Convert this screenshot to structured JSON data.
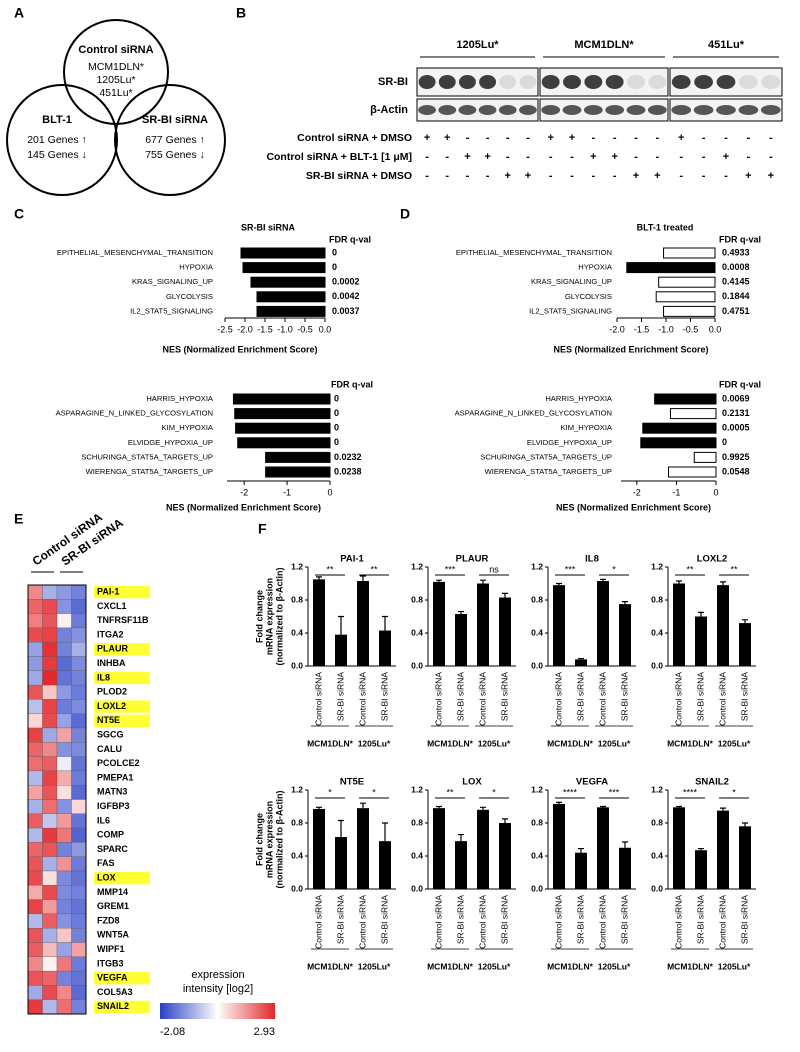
{
  "panel_labels": [
    "A",
    "B",
    "C",
    "D",
    "E",
    "F"
  ],
  "venn": {
    "sets": [
      {
        "label": "Control siRNA",
        "lines": [
          "MCM1DLN*",
          "1205Lu*",
          "451Lu*"
        ]
      },
      {
        "label": "BLT-1",
        "lines": [
          "201 Genes ↑",
          "145 Genes ↓"
        ]
      },
      {
        "label": "SR-BI siRNA",
        "lines": [
          "677 Genes ↑",
          "755 Genes ↓"
        ]
      }
    ]
  },
  "western_blot": {
    "cell_lines": [
      "1205Lu*",
      "MCM1DLN*",
      "451Lu*"
    ],
    "blot_rows": [
      "SR-BI",
      "β-Actin"
    ],
    "conditions": [
      {
        "label": "Control siRNA + DMSO",
        "marks": [
          [
            "+",
            "+",
            "-",
            "-",
            "-",
            "-"
          ],
          [
            "+",
            "+",
            "-",
            "-",
            "-",
            "-"
          ],
          [
            "+",
            "-",
            "-",
            "-",
            "-"
          ]
        ]
      },
      {
        "label": "Control siRNA + BLT-1 [1 μM]",
        "marks": [
          [
            "-",
            "-",
            "+",
            "+",
            "-",
            "-"
          ],
          [
            "-",
            "-",
            "+",
            "+",
            "-",
            "-"
          ],
          [
            "-",
            "-",
            "+",
            "-",
            "-"
          ]
        ]
      },
      {
        "label": "SR-BI siRNA + DMSO",
        "marks": [
          [
            "-",
            "-",
            "-",
            "-",
            "+",
            "+"
          ],
          [
            "-",
            "-",
            "-",
            "-",
            "+",
            "+"
          ],
          [
            "-",
            "-",
            "-",
            "+",
            "+"
          ]
        ]
      }
    ]
  },
  "chart_data": [
    {
      "type": "hbar",
      "title": "SR-BI siRNA",
      "categories": [
        "EPITHELIAL_MESENCHYMAL_TRANSITION",
        "HYPOXIA",
        "KRAS_SIGNALING_UP",
        "GLYCOLYSIS",
        "IL2_STAT5_SIGNALING"
      ],
      "values": [
        -2.1,
        -2.05,
        -1.85,
        -1.7,
        -1.7
      ],
      "color": "#000000",
      "fdr_header": "FDR q-val",
      "fdr": [
        0,
        0,
        0.0002,
        0.0042,
        0.0037
      ],
      "xlabel": "NES (Normalized Enrichment Score)",
      "xlim": [
        -2.5,
        0
      ],
      "xticks": [
        -2.5,
        {
          "value": -2,
          "label": "-2.0"
        },
        -1.5,
        {
          "value": -1,
          "label": "-1.0"
        },
        -0.5,
        {
          "value": 0,
          "label": "0.0"
        }
      ]
    },
    {
      "type": "hbar",
      "categories": [
        "HARRIS_HYPOXIA",
        "ASPARAGINE_N_LINKED_GLYCOSYLATION",
        "KIM_HYPOXIA",
        "ELVIDGE_HYPOXIA_UP",
        "SCHURINGA_STAT5A_TARGETS_UP",
        "WIERENGA_STAT5A_TARGETS_UP"
      ],
      "values": [
        -2.25,
        -2.22,
        -2.2,
        -2.15,
        -1.5,
        -1.5
      ],
      "color": "#000000",
      "fdr_header": "FDR q-val",
      "fdr": [
        0,
        0,
        0,
        0,
        0.0232,
        0.0238
      ],
      "xlabel": "NES (Normalized Enrichment Score)",
      "xlim": [
        -2.4,
        0
      ],
      "xticks": [
        -2,
        -1,
        0
      ]
    },
    {
      "type": "hbar",
      "title": "BLT-1 treated",
      "categories": [
        "EPITHELIAL_MESENCHYMAL_TRANSITION",
        "HYPOXIA",
        "KRAS_SIGNALING_UP",
        "GLYCOLYSIS",
        "IL2_STAT5_SIGNALING"
      ],
      "values": [
        -1.05,
        -1.8,
        -1.15,
        -1.2,
        -1.05
      ],
      "colors": [
        "#ffffff",
        "#000000",
        "#ffffff",
        "#ffffff",
        "#ffffff"
      ],
      "fdr_header": "FDR q-val",
      "fdr": [
        0.4933,
        0.0008,
        0.4145,
        0.1844,
        0.4751
      ],
      "xlabel": "NES (Normalized Enrichment Score)",
      "xlim": [
        -2,
        0
      ],
      "xticks": [
        {
          "value": -2,
          "label": "-2.0"
        },
        -1.5,
        {
          "value": -1,
          "label": "-1.0"
        },
        -0.5,
        {
          "value": 0,
          "label": "0.0"
        }
      ]
    },
    {
      "type": "hbar",
      "categories": [
        "HARRIS_HYPOXIA",
        "ASPARAGINE_N_LINKED_GLYCOSYLATION",
        "KIM_HYPOXIA",
        "ELVIDGE_HYPOXIA_UP",
        "SCHURINGA_STAT5A_TARGETS_UP",
        "WIERENGA_STAT5A_TARGETS_UP"
      ],
      "values": [
        -1.55,
        -1.15,
        -1.85,
        -1.9,
        -0.55,
        -1.2
      ],
      "colors": [
        "#000000",
        "#ffffff",
        "#000000",
        "#000000",
        "#ffffff",
        "#ffffff"
      ],
      "fdr_header": "FDR q-val",
      "fdr": [
        0.0069,
        0.2131,
        0.0005,
        0,
        0.9925,
        0.0548
      ],
      "xlabel": "NES (Normalized Enrichment Score)",
      "xlim": [
        -2.4,
        0
      ],
      "xticks": [
        -2,
        -1,
        0
      ]
    },
    {
      "type": "heatmap",
      "columns": [
        "Control siRNA",
        "SR-BI siRNA"
      ],
      "rows": [
        "PAI-1",
        "CXCL1",
        "TNFRSF11B",
        "ITGA2",
        "PLAUR",
        "INHBA",
        "IL8",
        "PLOD2",
        "LOXL2",
        "NT5E",
        "SGCG",
        "CALU",
        "PCOLCE2",
        "PMEPA1",
        "MATN3",
        "IGFBP3",
        "IL6",
        "COMP",
        "SPARC",
        "FAS",
        "LOX",
        "MMP14",
        "GREM1",
        "FZD8",
        "WNT5A",
        "WIPF1",
        "ITGB3",
        "VEGFA",
        "COL5A3",
        "SNAIL2"
      ],
      "highlight": [
        true,
        false,
        false,
        false,
        true,
        false,
        true,
        false,
        true,
        true,
        false,
        false,
        false,
        false,
        false,
        false,
        false,
        false,
        false,
        false,
        true,
        false,
        false,
        false,
        false,
        false,
        false,
        true,
        false,
        true
      ],
      "highlight_color": "#ffff33",
      "values": [
        [
          1.8,
          -0.6,
          -0.9,
          -1.2
        ],
        [
          2.2,
          2.5,
          -1.0,
          -1.5
        ],
        [
          1.9,
          2.4,
          0.6,
          -1.3
        ],
        [
          2.5,
          2.6,
          -1.2,
          -1.0
        ],
        [
          -0.8,
          2.8,
          -1.2,
          -0.6
        ],
        [
          -0.9,
          2.7,
          -1.5,
          -1.1
        ],
        [
          -0.7,
          2.9,
          -1.4,
          -1.2
        ],
        [
          2.4,
          1.1,
          -0.9,
          -1.3
        ],
        [
          -0.4,
          2.6,
          -1.3,
          -1.1
        ],
        [
          0.9,
          2.5,
          -0.8,
          -1.5
        ],
        [
          2.6,
          -0.7,
          1.5,
          -1.2
        ],
        [
          2.2,
          1.8,
          -1.0,
          -1.1
        ],
        [
          2.1,
          2.3,
          0.2,
          -1.4
        ],
        [
          -0.5,
          2.6,
          1.4,
          -1.3
        ],
        [
          1.5,
          2.4,
          0.8,
          -1.5
        ],
        [
          -0.6,
          2.1,
          -1.0,
          0.9
        ],
        [
          2.3,
          -0.3,
          1.6,
          -1.4
        ],
        [
          -0.5,
          2.7,
          2.0,
          -1.6
        ],
        [
          2.2,
          2.4,
          -1.2,
          -0.9
        ],
        [
          2.4,
          -0.6,
          1.7,
          -1.3
        ],
        [
          2.5,
          0.8,
          -1.1,
          -1.4
        ],
        [
          1.4,
          2.5,
          -1.1,
          -1.2
        ],
        [
          2.6,
          1.6,
          -1.2,
          -1.4
        ],
        [
          -0.5,
          2.3,
          -1.0,
          -1.3
        ],
        [
          2.4,
          -0.6,
          1.1,
          -1.2
        ],
        [
          2.3,
          1.2,
          -0.8,
          1.5
        ],
        [
          1.8,
          0.6,
          2.0,
          -1.3
        ],
        [
          2.4,
          2.2,
          -1.2,
          -1.4
        ],
        [
          -0.7,
          2.5,
          1.8,
          -1.5
        ],
        [
          2.7,
          -0.5,
          2.1,
          -1.2
        ]
      ],
      "colorbar": {
        "title": [
          "expression",
          "intensity [log2]"
        ],
        "min": -2.08,
        "max": 2.93,
        "colors": [
          "#2b3fc6",
          "#ffffff",
          "#e3262b"
        ]
      }
    },
    {
      "type": "bar",
      "title": "PAI-1",
      "ylabel": [
        "Fold change",
        "mRNA expression",
        "(normalized to β-Actin)"
      ],
      "categories": [
        "Control siRNA",
        "SR-BI siRNA",
        "Control siRNA",
        "SR-BI siRNA"
      ],
      "groups": [
        "MCM1DLN*",
        "1205Lu*"
      ],
      "values": [
        1.05,
        0.38,
        1.03,
        0.43
      ],
      "errors": [
        0.03,
        0.22,
        0.06,
        0.17
      ],
      "significance": [
        "**",
        "**"
      ],
      "color": "#000000",
      "ylim": [
        0,
        1.2
      ],
      "yticks": [
        {
          "value": 0,
          "label": "0.0"
        },
        0.4,
        0.8,
        1.2
      ]
    },
    {
      "type": "bar",
      "title": "PLAUR",
      "categories": [
        "Control siRNA",
        "SR-BI siRNA",
        "Control siRNA",
        "SR-BI siRNA"
      ],
      "groups": [
        "MCM1DLN*",
        "1205Lu*"
      ],
      "values": [
        1.02,
        0.63,
        1.0,
        0.83
      ],
      "errors": [
        0.02,
        0.03,
        0.04,
        0.05
      ],
      "significance": [
        "***",
        "ns"
      ],
      "color": "#000000",
      "ylim": [
        0,
        1.2
      ],
      "yticks": [
        {
          "value": 0,
          "label": "0.0"
        },
        0.4,
        0.8,
        1.2
      ]
    },
    {
      "type": "bar",
      "title": "IL8",
      "categories": [
        "Control siRNA",
        "SR-BI siRNA",
        "Control siRNA",
        "SR-BI siRNA"
      ],
      "groups": [
        "MCM1DLN*",
        "1205Lu*"
      ],
      "values": [
        0.98,
        0.08,
        1.03,
        0.75
      ],
      "errors": [
        0.02,
        0.01,
        0.02,
        0.03
      ],
      "significance": [
        "***",
        "*"
      ],
      "color": "#000000",
      "ylim": [
        0,
        1.2
      ],
      "yticks": [
        {
          "value": 0,
          "label": "0.0"
        },
        0.4,
        0.8,
        1.2
      ]
    },
    {
      "type": "bar",
      "title": "LOXL2",
      "categories": [
        "Control siRNA",
        "SR-BI siRNA",
        "Control siRNA",
        "SR-BI siRNA"
      ],
      "groups": [
        "MCM1DLN*",
        "1205Lu*"
      ],
      "values": [
        1.0,
        0.6,
        0.98,
        0.52
      ],
      "errors": [
        0.03,
        0.05,
        0.04,
        0.04
      ],
      "significance": [
        "**",
        "**"
      ],
      "color": "#000000",
      "ylim": [
        0,
        1.2
      ],
      "yticks": [
        {
          "value": 0,
          "label": "0.0"
        },
        0.4,
        0.8,
        1.2
      ]
    },
    {
      "type": "bar",
      "title": "NT5E",
      "ylabel": [
        "Fold change",
        "mRNA expression",
        "(normalized to β-Actin)"
      ],
      "categories": [
        "Control siRNA",
        "SR-BI siRNA",
        "Control siRNA",
        "SR-BI siRNA"
      ],
      "groups": [
        "MCM1DLN*",
        "1205Lu*"
      ],
      "values": [
        0.97,
        0.63,
        0.98,
        0.58
      ],
      "errors": [
        0.02,
        0.2,
        0.06,
        0.22
      ],
      "significance": [
        "*",
        "*"
      ],
      "color": "#000000",
      "ylim": [
        0,
        1.2
      ],
      "yticks": [
        {
          "value": 0,
          "label": "0.0"
        },
        0.4,
        0.8,
        1.2
      ]
    },
    {
      "type": "bar",
      "title": "LOX",
      "categories": [
        "Control siRNA",
        "SR-BI siRNA",
        "Control siRNA",
        "SR-BI siRNA"
      ],
      "groups": [
        "MCM1DLN*",
        "1205Lu*"
      ],
      "values": [
        0.98,
        0.58,
        0.96,
        0.8
      ],
      "errors": [
        0.02,
        0.08,
        0.03,
        0.05
      ],
      "significance": [
        "**",
        "*"
      ],
      "color": "#000000",
      "ylim": [
        0,
        1.2
      ],
      "yticks": [
        {
          "value": 0,
          "label": "0.0"
        },
        0.4,
        0.8,
        1.2
      ]
    },
    {
      "type": "bar",
      "title": "VEGFA",
      "categories": [
        "Control siRNA",
        "SR-BI siRNA",
        "Control siRNA",
        "SR-BI siRNA"
      ],
      "groups": [
        "MCM1DLN*",
        "1205Lu*"
      ],
      "values": [
        1.03,
        0.44,
        0.99,
        0.5
      ],
      "errors": [
        0.02,
        0.05,
        0.01,
        0.07
      ],
      "significance": [
        "****",
        "***"
      ],
      "color": "#000000",
      "ylim": [
        0,
        1.2
      ],
      "yticks": [
        {
          "value": 0,
          "label": "0.0"
        },
        0.4,
        0.8,
        1.2
      ]
    },
    {
      "type": "bar",
      "title": "SNAIL2",
      "categories": [
        "Control siRNA",
        "SR-BI siRNA",
        "Control siRNA",
        "SR-BI siRNA"
      ],
      "groups": [
        "MCM1DLN*",
        "1205Lu*"
      ],
      "values": [
        0.99,
        0.47,
        0.95,
        0.76
      ],
      "errors": [
        0.01,
        0.02,
        0.03,
        0.04
      ],
      "significance": [
        "****",
        "*"
      ],
      "color": "#000000",
      "ylim": [
        0,
        1.2
      ],
      "yticks": [
        {
          "value": 0,
          "label": "0.0"
        },
        0.4,
        0.8,
        1.2
      ]
    }
  ]
}
